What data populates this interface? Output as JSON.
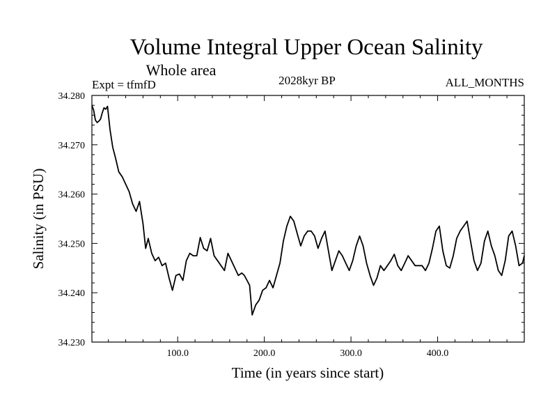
{
  "chart_data": {
    "type": "line",
    "title": "Volume Integral Upper Ocean Salinity",
    "subtitle": "Whole area",
    "experiment": "Expt = tfmfD",
    "period": "2028kyr BP",
    "months": "ALL_MONTHS",
    "xlabel": "Time (in years since start)",
    "ylabel": "Salinity (in PSU)",
    "xlim": [
      1,
      500
    ],
    "ylim": [
      34.23,
      34.28
    ],
    "xticks": [
      100,
      200,
      300,
      400
    ],
    "xtick_labels": [
      "100.0",
      "200.0",
      "300.0",
      "400.0"
    ],
    "yticks": [
      34.23,
      34.24,
      34.25,
      34.26,
      34.27,
      34.28
    ],
    "ytick_labels": [
      "34.230",
      "34.240",
      "34.250",
      "34.260",
      "34.270",
      "34.280"
    ],
    "grid": false,
    "series": [
      {
        "name": "Salinity",
        "x": [
          1,
          3,
          5,
          7,
          9,
          11,
          13,
          15,
          17,
          19,
          22,
          25,
          28,
          32,
          36,
          40,
          44,
          48,
          52,
          56,
          60,
          63,
          66,
          70,
          74,
          78,
          82,
          86,
          90,
          94,
          98,
          102,
          106,
          110,
          114,
          118,
          122,
          126,
          130,
          134,
          138,
          142,
          146,
          150,
          154,
          158,
          162,
          166,
          170,
          174,
          177,
          180,
          183,
          186,
          190,
          194,
          198,
          202,
          206,
          210,
          214,
          218,
          222,
          226,
          230,
          234,
          238,
          242,
          246,
          250,
          254,
          258,
          262,
          266,
          270,
          274,
          278,
          282,
          286,
          290,
          294,
          298,
          302,
          306,
          310,
          314,
          318,
          322,
          326,
          330,
          334,
          338,
          342,
          346,
          350,
          354,
          358,
          362,
          366,
          370,
          374,
          378,
          382,
          386,
          390,
          394,
          398,
          402,
          406,
          410,
          414,
          418,
          422,
          426,
          430,
          434,
          438,
          442,
          446,
          450,
          454,
          458,
          462,
          466,
          470,
          474,
          478,
          482,
          486,
          490,
          494,
          498,
          500
        ],
        "values": [
          34.278,
          34.277,
          34.275,
          34.2745,
          34.2748,
          34.2752,
          34.2765,
          34.2775,
          34.2772,
          34.2778,
          34.273,
          34.2695,
          34.2675,
          34.2645,
          34.2635,
          34.262,
          34.2605,
          34.258,
          34.2565,
          34.2585,
          34.254,
          34.249,
          34.251,
          34.248,
          34.2465,
          34.2472,
          34.2455,
          34.246,
          34.243,
          34.2405,
          34.2435,
          34.2438,
          34.2425,
          34.2465,
          34.248,
          34.2475,
          34.2475,
          34.2512,
          34.249,
          34.2485,
          34.251,
          34.2475,
          34.2465,
          34.2455,
          34.2445,
          34.248,
          34.2465,
          34.245,
          34.2435,
          34.244,
          34.2435,
          34.2425,
          34.2415,
          34.2355,
          34.2375,
          34.2385,
          34.2405,
          34.241,
          34.2425,
          34.241,
          34.2435,
          34.246,
          34.2505,
          34.2535,
          34.2555,
          34.2545,
          34.252,
          34.2495,
          34.2515,
          34.2525,
          34.2525,
          34.2515,
          34.249,
          34.251,
          34.2525,
          34.2485,
          34.2445,
          34.2465,
          34.2485,
          34.2475,
          34.246,
          34.2445,
          34.2465,
          34.2495,
          34.2515,
          34.2495,
          34.246,
          34.2435,
          34.2415,
          34.243,
          34.2455,
          34.2445,
          34.2455,
          34.2465,
          34.2478,
          34.2455,
          34.2445,
          34.246,
          34.2475,
          34.2465,
          34.2455,
          34.2455,
          34.2455,
          34.2445,
          34.246,
          34.249,
          34.2525,
          34.2535,
          34.2485,
          34.2455,
          34.245,
          34.2475,
          34.251,
          34.2525,
          34.2535,
          34.2545,
          34.2505,
          34.2465,
          34.2445,
          34.246,
          34.2505,
          34.2525,
          34.2495,
          34.2475,
          34.2445,
          34.2435,
          34.2465,
          34.2515,
          34.2525,
          34.2495,
          34.2455,
          34.246,
          34.2475
        ]
      }
    ]
  }
}
